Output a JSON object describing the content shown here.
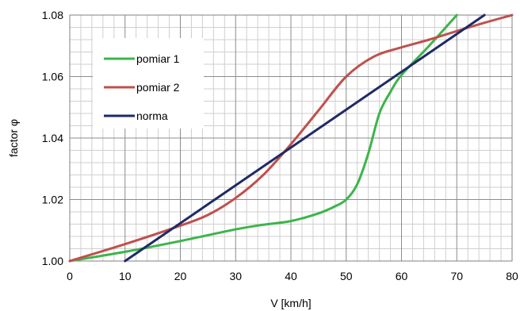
{
  "chart_data": {
    "type": "line",
    "title": "",
    "xlabel": "V  [km/h]",
    "ylabel": "factor  φ",
    "xlim": [
      0,
      80
    ],
    "ylim": [
      1.0,
      1.08
    ],
    "x_ticks": [
      0,
      10,
      20,
      30,
      40,
      50,
      60,
      70,
      80
    ],
    "x_tick_labels": [
      "0",
      "10",
      "20",
      "30",
      "40",
      "50",
      "60",
      "70",
      "80"
    ],
    "y_ticks": [
      1.0,
      1.02,
      1.04,
      1.06,
      1.08
    ],
    "y_tick_labels": [
      "1.00",
      "1.02",
      "1.04",
      "1.06",
      "1.08"
    ],
    "grid": true,
    "legend": "upper-left",
    "series": [
      {
        "name": "pomiar 1",
        "color": "#3cb54a",
        "x": [
          0,
          10,
          20,
          30,
          35,
          40,
          45,
          48,
          50,
          52,
          54,
          56,
          58,
          60,
          65,
          70
        ],
        "y": [
          1.0,
          1.003,
          1.0065,
          1.0103,
          1.0118,
          1.013,
          1.0155,
          1.0178,
          1.02,
          1.025,
          1.035,
          1.048,
          1.055,
          1.0605,
          1.07,
          1.08
        ]
      },
      {
        "name": "pomiar 2",
        "color": "#c0504d",
        "x": [
          0,
          10,
          20,
          25,
          30,
          35,
          40,
          45,
          50,
          55,
          60,
          65,
          70,
          75,
          80
        ],
        "y": [
          1.0,
          1.0055,
          1.0115,
          1.015,
          1.0205,
          1.028,
          1.038,
          1.049,
          1.06,
          1.0665,
          1.0695,
          1.072,
          1.0748,
          1.0775,
          1.08
        ]
      },
      {
        "name": "norma",
        "color": "#1f2a66",
        "x": [
          10,
          75
        ],
        "y": [
          1.0,
          1.08
        ]
      }
    ]
  }
}
